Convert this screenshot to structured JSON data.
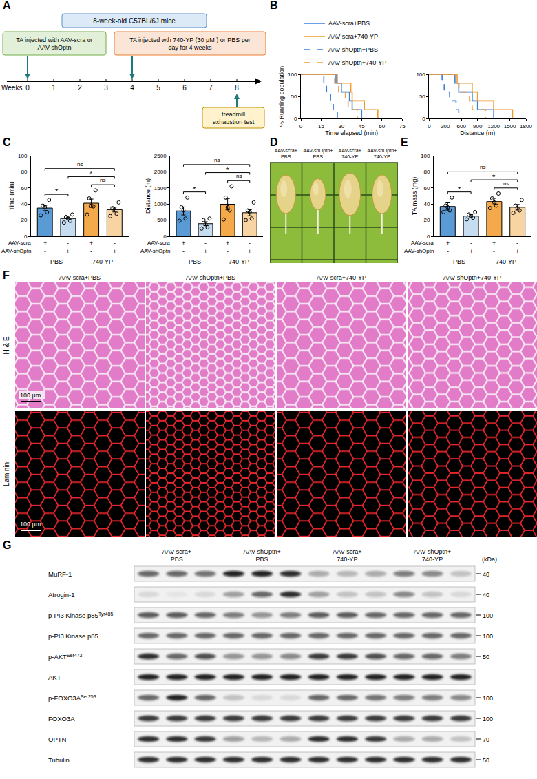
{
  "figure": {
    "letters": [
      "A",
      "B",
      "C",
      "D",
      "E",
      "F",
      "G"
    ],
    "A": {
      "cohort": "8-week-old C57BL/6J mice",
      "first_injection": {
        "text": "TA injected with AAV-scra or AAV-shOptn",
        "week": 0
      },
      "second_injection": {
        "text": "TA injected wth 740-YP (30 μM ) or PBS per day for 4 weeks",
        "week": 4
      },
      "test": {
        "text": "treadmill exhaustion test",
        "week": 8
      },
      "axis_label": "Weeks",
      "weeks": [
        0,
        1,
        2,
        3,
        4,
        5,
        6,
        7,
        8
      ]
    },
    "D": {
      "labels": [
        "AAV-scra+PBS",
        "AAV-shOptn+PBS",
        "AAV-scra+740-YP",
        "AAV-shOptn+740-YP"
      ]
    },
    "F": {
      "columns": [
        "AAV-scra+PBS",
        "AAV-shOptn+PBS",
        "AAV-scra+740-YP",
        "AAV-shOptn+740-YP"
      ],
      "rows": [
        "H & E",
        "Laminin"
      ],
      "scale_bar": "100 μm"
    },
    "G": {
      "groups": [
        "AAV-scra+PBS",
        "AAV-shOptn+PBS",
        "AAV-scra+740-YP",
        "AAV-shOptn+740-YP"
      ],
      "unit": "(kDa)",
      "rows": [
        {
          "name": "MuRF-1",
          "kda": 40,
          "bands": [
            0.6,
            0.6,
            0.55,
            0.9,
            0.9,
            0.85,
            0.3,
            0.25,
            0.3,
            0.5,
            0.45,
            0.2
          ]
        },
        {
          "name": "Atrogin-1",
          "kda": 40,
          "bands": [
            0.1,
            0.05,
            0.1,
            0.35,
            0.6,
            0.85,
            0.35,
            0.2,
            0.2,
            0.45,
            0.2,
            0.1
          ]
        },
        {
          "name": "p-PI3 Kinase p85",
          "sup": "Tyr485",
          "kda": 100,
          "bands": [
            0.65,
            0.65,
            0.6,
            0.5,
            0.4,
            0.5,
            0.65,
            0.65,
            0.6,
            0.6,
            0.6,
            0.6
          ]
        },
        {
          "name": "p-PI3 Kinase p85",
          "kda": 100,
          "bands": [
            0.6,
            0.6,
            0.6,
            0.6,
            0.6,
            0.6,
            0.6,
            0.6,
            0.6,
            0.6,
            0.6,
            0.6
          ]
        },
        {
          "name": "p-AKT",
          "sup": "Ser473",
          "kda": 50,
          "bands": [
            0.85,
            0.6,
            0.7,
            0.4,
            0.4,
            0.45,
            0.8,
            0.8,
            0.7,
            0.6,
            0.6,
            0.5
          ]
        },
        {
          "name": "AKT",
          "bands": [
            0.9,
            0.9,
            0.9,
            0.9,
            0.9,
            0.9,
            0.9,
            0.9,
            0.9,
            0.9,
            0.9,
            0.9
          ]
        },
        {
          "name": "p-FOXO3A",
          "sup": "Ser253",
          "kda": 100,
          "bands": [
            0.6,
            0.9,
            0.6,
            0.2,
            0.1,
            0.1,
            0.6,
            0.6,
            0.55,
            0.5,
            0.5,
            0.45
          ]
        },
        {
          "name": "FOXO3A",
          "kda": 100,
          "bands": [
            0.8,
            0.8,
            0.8,
            0.8,
            0.8,
            0.8,
            0.8,
            0.8,
            0.8,
            0.8,
            0.8,
            0.8
          ]
        },
        {
          "name": "OPTN",
          "kda": 70,
          "bands": [
            0.85,
            0.85,
            0.8,
            0.35,
            0.25,
            0.3,
            0.85,
            0.85,
            0.8,
            0.3,
            0.3,
            0.2
          ]
        },
        {
          "name": "Tubulin",
          "kda": 50,
          "bands": [
            0.85,
            0.85,
            0.85,
            0.85,
            0.85,
            0.85,
            0.85,
            0.85,
            0.85,
            0.85,
            0.85,
            0.85
          ]
        }
      ]
    }
  },
  "chart_data": [
    {
      "type": "step",
      "x_label": "Time elapsed (min)",
      "y_label": "% Running population",
      "legend": "top",
      "xlim": [
        0,
        75
      ],
      "xticks": [
        0,
        15,
        30,
        45,
        60,
        75
      ],
      "ylim": [
        0,
        100
      ],
      "yticks": [
        0,
        50,
        100
      ],
      "series": [
        {
          "name": "AAV-scra+PBS",
          "color": "#3b7ddd",
          "line_style": "solid",
          "x": [
            0,
            26,
            30,
            36,
            38,
            45
          ],
          "values": [
            100,
            80,
            60,
            40,
            20,
            0
          ]
        },
        {
          "name": "AAV-scra+740-YP",
          "color": "#f39a2e",
          "line_style": "solid",
          "x": [
            0,
            27,
            37,
            38,
            47,
            57
          ],
          "values": [
            100,
            80,
            60,
            40,
            20,
            0
          ]
        },
        {
          "name": "AAV-shOptn+PBS",
          "color": "#3b7ddd",
          "line_style": "dashed",
          "x": [
            0,
            17,
            19,
            22,
            24,
            27
          ],
          "values": [
            100,
            80,
            60,
            40,
            20,
            0
          ]
        },
        {
          "name": "AAV-shOptn+740-YP",
          "color": "#f39a2e",
          "line_style": "dashed",
          "x": [
            0,
            25,
            28,
            33,
            35,
            42
          ],
          "values": [
            100,
            80,
            60,
            40,
            20,
            0
          ]
        }
      ]
    },
    {
      "type": "step",
      "x_label": "Distance (m)",
      "xlim": [
        0,
        1800
      ],
      "xticks": [
        0,
        300,
        600,
        900,
        1200,
        1500,
        1800
      ],
      "ylim": [
        0,
        100
      ],
      "yticks": [
        0,
        50,
        100
      ],
      "series": [
        {
          "name": "AAV-scra+PBS",
          "color": "#3b7ddd",
          "line_style": "solid",
          "x": [
            0,
            480,
            550,
            800,
            900,
            1200
          ],
          "values": [
            100,
            80,
            60,
            40,
            20,
            0
          ]
        },
        {
          "name": "AAV-scra+740-YP",
          "color": "#f39a2e",
          "line_style": "solid",
          "x": [
            0,
            520,
            800,
            900,
            1200,
            1550
          ],
          "values": [
            100,
            80,
            60,
            40,
            20,
            0
          ]
        },
        {
          "name": "AAV-shOptn+PBS",
          "color": "#3b7ddd",
          "line_style": "dashed",
          "x": [
            0,
            240,
            280,
            380,
            500,
            550
          ],
          "values": [
            100,
            80,
            60,
            40,
            20,
            0
          ]
        },
        {
          "name": "AAV-shOptn+740-YP",
          "color": "#f39a2e",
          "line_style": "dashed",
          "x": [
            0,
            500,
            550,
            750,
            800,
            1050
          ],
          "values": [
            100,
            80,
            60,
            40,
            20,
            0
          ]
        }
      ]
    },
    {
      "type": "bar",
      "y_label": "Time (min)",
      "tick_labels": "y",
      "categories": [
        "AAV-scra+PBS",
        "AAV-shOptn+PBS",
        "AAV-scra+740-YP",
        "AAV-shOptn+740-YP"
      ],
      "values": [
        35,
        22,
        41,
        33
      ],
      "errors": [
        3.3,
        1.8,
        5.1,
        2.9
      ],
      "points": [
        [
          26,
          30,
          36,
          38,
          45
        ],
        [
          17,
          19,
          22,
          24,
          27
        ],
        [
          27,
          37,
          38,
          47,
          57
        ],
        [
          25,
          28,
          33,
          35,
          42
        ]
      ],
      "colors": [
        "#5b9bd5",
        "#c6dcf1",
        "#f4a94a",
        "#f9d4a3"
      ],
      "ylim": [
        0,
        100
      ],
      "yticks": [
        0,
        20,
        40,
        60,
        80,
        100
      ],
      "x_table": {
        "rows": [
          {
            "label": "AAV-scra",
            "signs": [
              "+",
              "-",
              "+",
              "-"
            ]
          },
          {
            "label": "AAV-shOptn",
            "signs": [
              "-",
              "+",
              "-",
              "+"
            ]
          }
        ],
        "groups": [
          {
            "label": "PBS",
            "categories": [
              "AAV-scra+PBS",
              "AAV-shOptn+PBS"
            ]
          },
          {
            "label": "740-YP",
            "categories": [
              "AAV-scra+740-YP",
              "AAV-shOptn+740-YP"
            ]
          }
        ]
      },
      "significance": [
        {
          "from": "AAV-scra+PBS",
          "to": "AAV-shOptn+PBS",
          "label": "*"
        },
        {
          "from": "AAV-scra+PBS",
          "to": "AAV-shOptn+740-YP",
          "label": "ns"
        },
        {
          "from": "AAV-shOptn+PBS",
          "to": "AAV-shOptn+740-YP",
          "label": "*"
        },
        {
          "from": "AAV-scra+740-YP",
          "to": "AAV-shOptn+740-YP",
          "label": "ns"
        }
      ]
    },
    {
      "type": "bar",
      "y_label": "Distance (m)",
      "tick_labels": "y",
      "categories": [
        "AAV-scra+PBS",
        "AAV-shOptn+PBS",
        "AAV-scra+740-YP",
        "AAV-shOptn+740-YP"
      ],
      "values": [
        786,
        390,
        994,
        730
      ],
      "errors": [
        125,
        60,
        175,
        95
      ],
      "points": [
        [
          480,
          550,
          800,
          900,
          1200
        ],
        [
          240,
          280,
          380,
          500,
          550
        ],
        [
          520,
          800,
          900,
          1200,
          1550
        ],
        [
          500,
          550,
          750,
          800,
          1050
        ]
      ],
      "colors": [
        "#5b9bd5",
        "#c6dcf1",
        "#f4a94a",
        "#f9d4a3"
      ],
      "ylim": [
        0,
        2500
      ],
      "yticks": [
        0,
        500,
        1000,
        1500,
        2000,
        2500
      ],
      "x_table": {
        "rows": [
          {
            "label": "AAV-scra",
            "signs": [
              "+",
              "-",
              "+",
              "-"
            ]
          },
          {
            "label": "AAV-shOptn",
            "signs": [
              "-",
              "+",
              "-",
              "+"
            ]
          }
        ],
        "groups": [
          {
            "label": "PBS",
            "categories": [
              "AAV-scra+PBS",
              "AAV-shOptn+PBS"
            ]
          },
          {
            "label": "740-YP",
            "categories": [
              "AAV-scra+740-YP",
              "AAV-shOptn+740-YP"
            ]
          }
        ]
      },
      "significance": [
        {
          "from": "AAV-scra+PBS",
          "to": "AAV-shOptn+PBS",
          "label": "*"
        },
        {
          "from": "AAV-scra+PBS",
          "to": "AAV-shOptn+740-YP",
          "label": "ns"
        },
        {
          "from": "AAV-shOptn+PBS",
          "to": "AAV-shOptn+740-YP",
          "label": "*"
        },
        {
          "from": "AAV-scra+740-YP",
          "to": "AAV-shOptn+740-YP",
          "label": "ns"
        }
      ]
    },
    {
      "type": "bar",
      "y_label": "TA mass (mg)",
      "tick_labels": "y",
      "categories": [
        "AAV-scra+PBS",
        "AAV-shOptn+PBS",
        "AAV-scra+740-YP",
        "AAV-shOptn+740-YP"
      ],
      "values": [
        37,
        25,
        43,
        36
      ],
      "errors": [
        4.5,
        2,
        4,
        3.5
      ],
      "points": [
        [
          30,
          32,
          36,
          38,
          48
        ],
        [
          21,
          23,
          25,
          27,
          30
        ],
        [
          35,
          38,
          42,
          47,
          53
        ],
        [
          29,
          32,
          35,
          38,
          45
        ]
      ],
      "colors": [
        "#5b9bd5",
        "#c6dcf1",
        "#f4a94a",
        "#f9d4a3"
      ],
      "ylim": [
        0,
        100
      ],
      "yticks": [
        0,
        20,
        40,
        60,
        80,
        100
      ],
      "x_table": {
        "rows": [
          {
            "label": "AAV-scra",
            "signs": [
              "+",
              "-",
              "+",
              "-"
            ]
          },
          {
            "label": "AAV-shOptn",
            "signs": [
              "-",
              "+",
              "-",
              "+"
            ]
          }
        ],
        "groups": [
          {
            "label": "PBS",
            "categories": [
              "AAV-scra+PBS",
              "AAV-shOptn+PBS"
            ]
          },
          {
            "label": "740-YP",
            "categories": [
              "AAV-scra+740-YP",
              "AAV-shOptn+740-YP"
            ]
          }
        ]
      },
      "significance": [
        {
          "from": "AAV-scra+PBS",
          "to": "AAV-shOptn+PBS",
          "label": "*"
        },
        {
          "from": "AAV-scra+PBS",
          "to": "AAV-shOptn+740-YP",
          "label": "ns"
        },
        {
          "from": "AAV-shOptn+PBS",
          "to": "AAV-shOptn+740-YP",
          "label": "*"
        },
        {
          "from": "AAV-scra+740-YP",
          "to": "AAV-shOptn+740-YP",
          "label": "ns"
        }
      ]
    }
  ]
}
